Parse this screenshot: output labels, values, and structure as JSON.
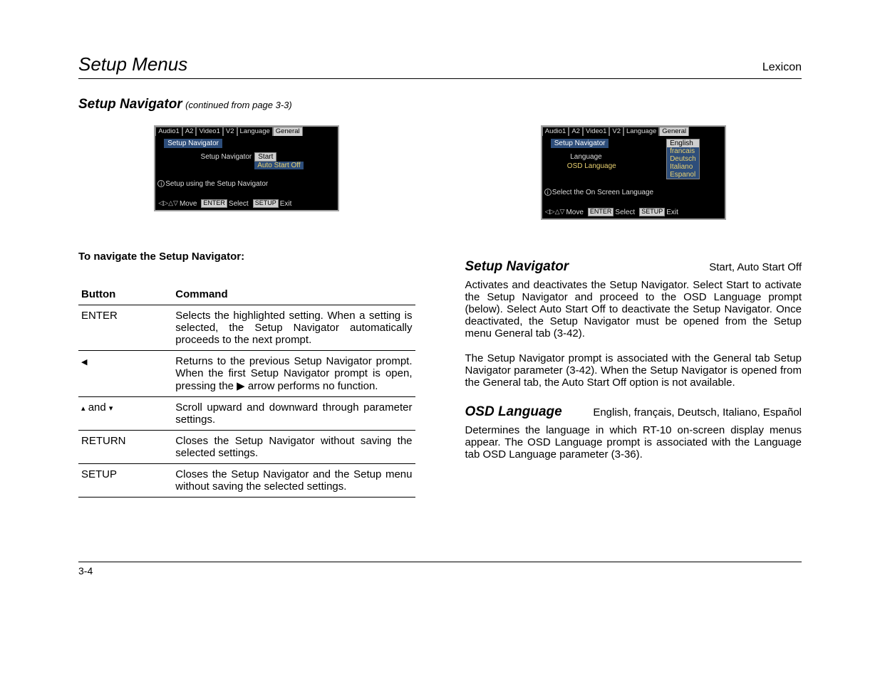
{
  "header": {
    "title": "Setup Menus",
    "brand": "Lexicon"
  },
  "subhead": {
    "title": "Setup Navigator",
    "continued": "(continued from page 3-3)"
  },
  "osd_left": {
    "tabs": [
      "Audio1",
      "A2",
      "Video1",
      "V2",
      "Language",
      "General"
    ],
    "active_tab_index": 5,
    "title": "Setup Navigator",
    "label": "Setup Navigator",
    "sel_value": "Start",
    "sub_value": "Auto Start Off",
    "hint": "Setup using the Setup Navigator",
    "footer": {
      "move": "Move",
      "enter_btn": "ENTER",
      "select": "Select",
      "setup_btn": "SETUP",
      "exit": "Exit"
    }
  },
  "osd_right": {
    "tabs": [
      "Audio1",
      "A2",
      "Video1",
      "V2",
      "Language",
      "General"
    ],
    "active_tab_index": 5,
    "title": "Setup Navigator",
    "row1_label": "Language",
    "row2_label": "OSD Language",
    "lang_options": [
      "English",
      "francais",
      "Deutsch",
      "Italiano",
      "Espanol"
    ],
    "sel_lang_index": 0,
    "hint": "Select the On Screen Language",
    "footer": {
      "move": "Move",
      "enter_btn": "ENTER",
      "select": "Select",
      "setup_btn": "SETUP",
      "exit": "Exit"
    }
  },
  "nav_intro": "To navigate the Setup Navigator:",
  "table": {
    "h1": "Button",
    "h2": "Command",
    "rows": [
      {
        "btn_text": "ENTER",
        "btn_kind": "text",
        "cmd": "Selects the highlighted setting. When a setting is selected, the Setup Navigator automatically proceeds to the next prompt."
      },
      {
        "btn_text": "",
        "btn_kind": "left",
        "cmd": "Returns to the previous Setup Navigator prompt. When the first Setup Navigator prompt is open, pressing the   ▶   arrow performs no function."
      },
      {
        "btn_text": "  and  ",
        "btn_kind": "updown",
        "cmd": "Scroll upward and downward through parameter settings."
      },
      {
        "btn_text": "RETURN",
        "btn_kind": "text",
        "cmd": "Closes the Setup Navigator without saving the selected settings."
      },
      {
        "btn_text": "SETUP",
        "btn_kind": "text",
        "cmd": "Closes the Setup Navigator and the Setup menu without saving the selected settings."
      }
    ]
  },
  "right_params": {
    "p1": {
      "name": "Setup Navigator",
      "opts": "Start, Auto Start Off",
      "body1": "Activates and deactivates the Setup Navigator. Select Start to activate the Setup Navigator and proceed to the OSD Language prompt (below). Select Auto Start Off to deactivate the Setup Navigator. Once deactivated, the Setup Navigator must be opened from the Setup menu General tab (3-42).",
      "body2": "The Setup Navigator prompt is associated with the General tab Setup Navigator parameter (3-42). When the Setup Navigator is opened from the General tab, the Auto Start Off option is not available."
    },
    "p2": {
      "name": "OSD Language",
      "opts": "English, français, Deutsch, Italiano, Español",
      "body": "Determines the language in which RT-10 on-screen display menus appear. The OSD Language prompt is associated with the Language tab OSD Language parameter (3-36)."
    }
  },
  "page_number": "3-4"
}
